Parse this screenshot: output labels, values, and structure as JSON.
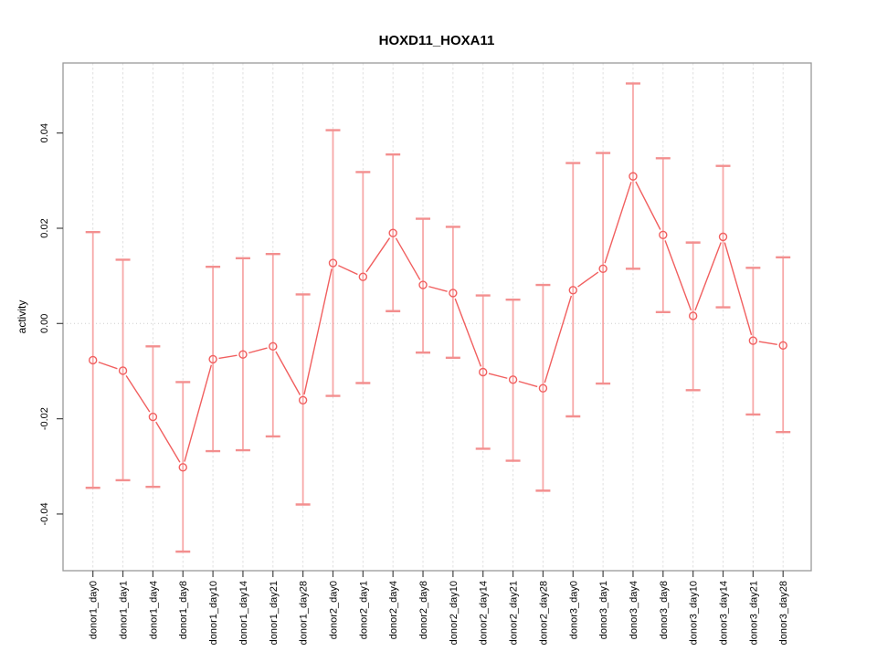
{
  "chart_data": {
    "type": "scatter",
    "title": "HOXD11_HOXA11",
    "xlabel": "",
    "ylabel": "activity",
    "legend": "none",
    "grid": "vertical dashed gridline at every category; horizontal dotted line at y=0",
    "marker": "open-circle with connecting segments and error bars",
    "categories": [
      "donor1_day0",
      "donor1_day1",
      "donor1_day4",
      "donor1_day8",
      "donor1_day10",
      "donor1_day14",
      "donor1_day21",
      "donor1_day28",
      "donor2_day0",
      "donor2_day1",
      "donor2_day4",
      "donor2_day8",
      "donor2_day10",
      "donor2_day14",
      "donor2_day21",
      "donor2_day28",
      "donor3_day0",
      "donor3_day1",
      "donor3_day4",
      "donor3_day8",
      "donor3_day10",
      "donor3_day14",
      "donor3_day21",
      "donor3_day28"
    ],
    "series": [
      {
        "name": "activity",
        "values": [
          -0.0077,
          -0.0099,
          -0.0196,
          -0.0302,
          -0.0075,
          -0.0065,
          -0.0048,
          -0.0161,
          0.0127,
          0.0098,
          0.019,
          0.0081,
          0.0064,
          -0.0102,
          -0.0118,
          -0.0136,
          0.007,
          0.0115,
          0.0309,
          0.0186,
          0.0016,
          0.0182,
          -0.0036,
          -0.0046
        ],
        "lower": [
          -0.0345,
          -0.0329,
          -0.0343,
          -0.0479,
          -0.0268,
          -0.0266,
          -0.0237,
          -0.038,
          -0.0152,
          -0.0125,
          0.0026,
          -0.0061,
          -0.0072,
          -0.0263,
          -0.0288,
          -0.0351,
          -0.0195,
          -0.0126,
          0.0115,
          0.0024,
          -0.014,
          0.0034,
          -0.0191,
          -0.0228
        ],
        "upper": [
          0.0192,
          0.0134,
          -0.0048,
          -0.0123,
          0.0119,
          0.0137,
          0.0146,
          0.0061,
          0.0406,
          0.0318,
          0.0355,
          0.022,
          0.0203,
          0.0059,
          0.005,
          0.0081,
          0.0337,
          0.0358,
          0.0504,
          0.0347,
          0.017,
          0.0331,
          0.0117,
          0.0139
        ]
      }
    ],
    "ylim": [
      -0.0519,
      0.0547
    ],
    "yticks": [
      -0.04,
      -0.02,
      0,
      0.02,
      0.04
    ],
    "ytick_labels": [
      "-0.04",
      "-0.02",
      "0.00",
      "0.02",
      "0.04"
    ],
    "colors": {
      "point": "#f15f5f",
      "line": "#f15f5f",
      "error_bar": "#f7a8a8",
      "error_bar_cap": "#f38f8f",
      "grid": "#e0e0e0",
      "zero_line": "#cfcfcf",
      "box": "#999999",
      "tick": "#444444",
      "text": "#000000"
    }
  }
}
